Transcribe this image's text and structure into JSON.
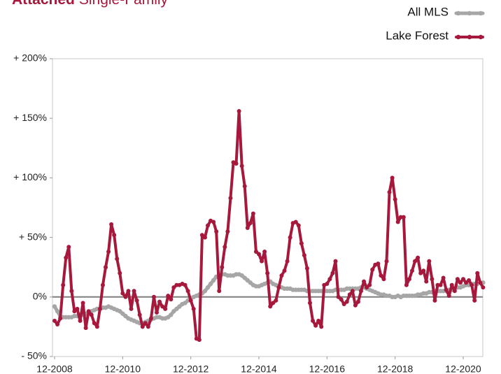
{
  "chart_data": {
    "type": "line",
    "title_bold": "Attached",
    "title": "Single-Family",
    "categories": [
      "12-2008",
      null,
      null,
      null,
      null,
      null,
      null,
      null,
      null,
      null,
      null,
      null,
      null,
      null,
      null,
      null,
      null,
      null,
      null,
      null,
      null,
      null,
      null,
      null,
      "12-2010",
      null,
      null,
      null,
      null,
      null,
      null,
      null,
      null,
      null,
      null,
      null,
      null,
      null,
      null,
      null,
      null,
      null,
      null,
      null,
      null,
      null,
      null,
      null,
      "12-2012",
      null,
      null,
      null,
      null,
      null,
      null,
      null,
      null,
      null,
      null,
      null,
      null,
      null,
      null,
      null,
      null,
      null,
      null,
      null,
      null,
      null,
      null,
      null,
      "12-2014",
      null,
      null,
      null,
      null,
      null,
      null,
      null,
      null,
      null,
      null,
      null,
      null,
      null,
      null,
      null,
      null,
      null,
      null,
      null,
      null,
      null,
      null,
      null,
      "12-2016",
      null,
      null,
      null,
      null,
      null,
      null,
      null,
      null,
      null,
      null,
      null,
      null,
      null,
      null,
      null,
      null,
      null,
      null,
      null,
      null,
      null,
      null,
      null,
      "12-2018",
      null,
      null,
      null,
      null,
      null,
      null,
      null,
      null,
      null,
      null,
      null,
      null,
      null,
      null,
      null,
      null,
      null,
      null,
      null,
      null,
      null,
      null,
      null,
      "12-2020",
      null,
      null,
      null,
      null,
      null,
      null,
      null
    ],
    "series": [
      {
        "name": "All MLS",
        "color": "#a6a6a6",
        "values": [
          -8,
          -12,
          -16,
          -17,
          -17,
          -17,
          -17,
          -16,
          -16,
          -15,
          -15,
          -14,
          -13,
          -12,
          -11,
          -10,
          -10,
          -9,
          -9,
          -8,
          -9,
          -10,
          -11,
          -12,
          -14,
          -16,
          -18,
          -19,
          -20,
          -21,
          -22,
          -22,
          -21,
          -20,
          -19,
          -18,
          -17,
          -17,
          -18,
          -18,
          -17,
          -15,
          -12,
          -10,
          -8,
          -6,
          -5,
          -3,
          -1,
          0,
          1,
          2,
          3,
          5,
          8,
          11,
          14,
          17,
          18,
          19,
          19,
          18,
          18,
          18,
          19,
          19,
          18,
          16,
          14,
          12,
          10,
          9,
          9,
          10,
          11,
          12,
          13,
          11,
          10,
          9,
          8,
          7,
          7,
          7,
          6,
          6,
          6,
          6,
          6,
          5,
          5,
          5,
          5,
          5,
          5,
          5,
          5,
          5,
          5,
          6,
          6,
          6,
          6,
          7,
          7,
          7,
          7,
          7,
          8,
          8,
          7,
          6,
          5,
          4,
          3,
          2,
          2,
          1,
          1,
          0,
          0,
          1,
          0,
          1,
          1,
          1,
          1,
          1,
          2,
          2,
          3,
          3,
          4,
          4,
          5,
          5,
          5,
          5,
          5,
          6,
          6,
          7,
          8,
          8,
          9,
          10,
          10,
          11,
          11,
          11,
          12,
          12
        ]
      },
      {
        "name": "Lake Forest",
        "color": "#a6193c",
        "values": [
          -20,
          -23,
          -18,
          10,
          33,
          42,
          5,
          -12,
          -10,
          -20,
          -5,
          -26,
          -12,
          -15,
          -22,
          -25,
          -10,
          10,
          25,
          38,
          61,
          52,
          32,
          20,
          3,
          0,
          5,
          -10,
          5,
          -3,
          -15,
          -25,
          -22,
          -25,
          -18,
          0,
          -13,
          -4,
          -8,
          -10,
          1,
          -2,
          8,
          10,
          10,
          11,
          10,
          5,
          -3,
          -10,
          -35,
          -36,
          52,
          50,
          60,
          64,
          63,
          55,
          5,
          25,
          42,
          55,
          83,
          113,
          112,
          156,
          110,
          93,
          58,
          62,
          70,
          38,
          36,
          30,
          38,
          20,
          -8,
          -5,
          -3,
          8,
          18,
          22,
          30,
          50,
          62,
          63,
          60,
          45,
          35,
          24,
          -5,
          -20,
          -24,
          -20,
          -25,
          10,
          11,
          15,
          20,
          30,
          0,
          -2,
          -6,
          -4,
          2,
          5,
          -7,
          -4,
          5,
          13,
          8,
          10,
          23,
          27,
          28,
          18,
          15,
          30,
          88,
          100,
          82,
          63,
          67,
          67,
          10,
          15,
          22,
          30,
          33,
          20,
          22,
          13,
          30,
          15,
          -3,
          10,
          10,
          16,
          6,
          1,
          10,
          5,
          15,
          12,
          15,
          12,
          14,
          10,
          -3,
          20,
          12,
          8
        ]
      }
    ],
    "ylim": [
      -50,
      200
    ],
    "yticks": [
      {
        "value": -50,
        "label": "- 50%"
      },
      {
        "value": 0,
        "label": "0%"
      },
      {
        "value": 50,
        "label": "+ 50%"
      },
      {
        "value": 100,
        "label": "+ 100%"
      },
      {
        "value": 150,
        "label": "+ 150%"
      },
      {
        "value": 200,
        "label": "+ 200%"
      }
    ],
    "grid": false,
    "legend": "top-right"
  }
}
